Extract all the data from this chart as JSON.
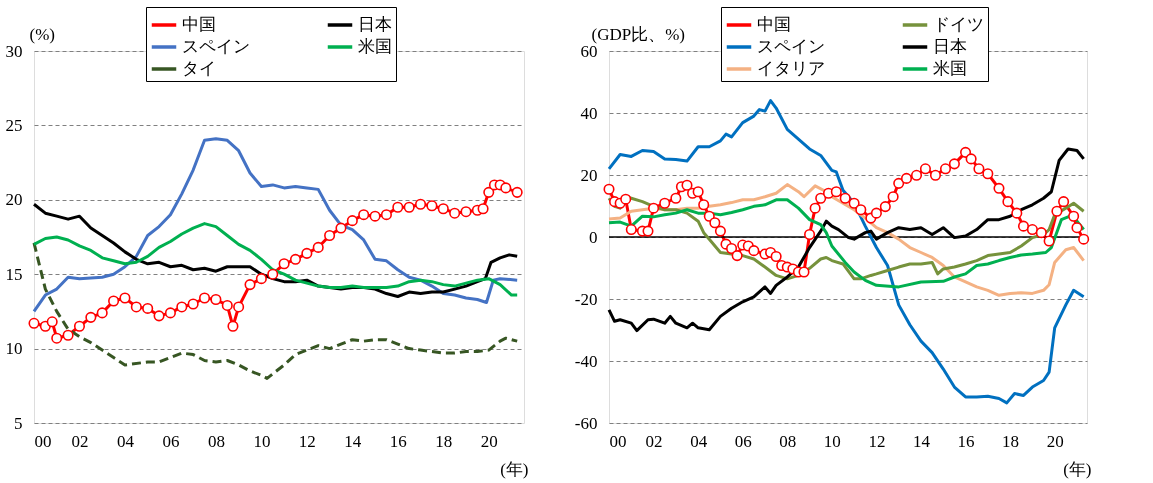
{
  "chart_data": [
    {
      "type": "line",
      "ylabel": "(%)",
      "xlabel": "(年)",
      "xlim": [
        2000,
        2021.55
      ],
      "ylim": [
        5,
        30
      ],
      "xticks": [
        {
          "value": 2000,
          "label": "00"
        },
        {
          "value": 2002,
          "label": "02"
        },
        {
          "value": 2004,
          "label": "04"
        },
        {
          "value": 2006,
          "label": "06"
        },
        {
          "value": 2008,
          "label": "08"
        },
        {
          "value": 2010,
          "label": "10"
        },
        {
          "value": 2012,
          "label": "12"
        },
        {
          "value": 2014,
          "label": "14"
        },
        {
          "value": 2016,
          "label": "16"
        },
        {
          "value": 2018,
          "label": "18"
        },
        {
          "value": 2020,
          "label": "20"
        }
      ],
      "yticks": [
        5,
        10,
        15,
        20,
        25,
        30
      ],
      "grid": "y",
      "legend": "top",
      "series": [
        {
          "name": "中国",
          "color": "#ff0000",
          "marker": "circle",
          "x": [
            2000,
            2000.5,
            2000.8,
            2001,
            2001.5,
            2002,
            2002.5,
            2003,
            2003.5,
            2004,
            2004.5,
            2005,
            2005.5,
            2006,
            2006.5,
            2007,
            2007.5,
            2008,
            2008.5,
            2008.75,
            2009,
            2009.5,
            2010,
            2010.5,
            2011,
            2011.5,
            2012,
            2012.5,
            2013,
            2013.5,
            2014,
            2014.5,
            2015,
            2015.5,
            2016,
            2016.5,
            2017,
            2017.5,
            2018,
            2018.5,
            2019,
            2019.5,
            2019.75,
            2020,
            2020.25,
            2020.5,
            2020.75,
            2021.25
          ],
          "values": [
            11.7,
            11.5,
            11.8,
            10.7,
            10.9,
            11.5,
            12.1,
            12.4,
            13.2,
            13.4,
            12.8,
            12.7,
            12.2,
            12.4,
            12.8,
            13.0,
            13.4,
            13.3,
            12.9,
            11.5,
            12.8,
            14.3,
            14.7,
            15.0,
            15.7,
            16.0,
            16.4,
            16.8,
            17.6,
            18.1,
            18.6,
            19.0,
            18.9,
            19.0,
            19.5,
            19.5,
            19.7,
            19.6,
            19.4,
            19.1,
            19.2,
            19.3,
            19.4,
            20.5,
            21.0,
            21.0,
            20.8,
            20.5
          ]
        },
        {
          "name": "スペイン",
          "color": "#4472c4",
          "x": [
            2000,
            2000.5,
            2001,
            2001.5,
            2002,
            2003,
            2003.5,
            2004,
            2004.5,
            2005,
            2005.5,
            2006,
            2006.5,
            2007,
            2007.5,
            2008,
            2008.5,
            2009,
            2009.5,
            2010,
            2010.5,
            2011,
            2011.5,
            2012,
            2012.5,
            2013,
            2013.5,
            2014,
            2014.5,
            2015,
            2015.5,
            2016,
            2016.5,
            2017,
            2017.5,
            2018,
            2018.5,
            2019,
            2019.5,
            2019.9,
            2020.2,
            2020.5,
            2021.25
          ],
          "values": [
            12.5,
            13.6,
            14.0,
            14.8,
            14.7,
            14.8,
            15.0,
            15.5,
            16.2,
            17.6,
            18.2,
            19.0,
            20.4,
            22.0,
            24.0,
            24.1,
            24.0,
            23.3,
            21.8,
            20.9,
            21.0,
            20.8,
            20.9,
            20.8,
            20.7,
            19.3,
            18.3,
            18.0,
            17.3,
            16.0,
            15.9,
            15.3,
            14.8,
            14.6,
            14.2,
            13.7,
            13.6,
            13.4,
            13.3,
            13.1,
            14.6,
            14.7,
            14.6
          ]
        },
        {
          "name": "タイ",
          "color": "#375623",
          "line_style": "dashed",
          "x": [
            2000,
            2000.5,
            2001,
            2001.5,
            2002,
            2002.5,
            2003,
            2003.5,
            2004,
            2005,
            2005.5,
            2006,
            2006.5,
            2007,
            2007.5,
            2008,
            2008.5,
            2009,
            2009.5,
            2010,
            2010.25,
            2010.5,
            2011,
            2011.5,
            2012,
            2012.5,
            2013,
            2013.5,
            2014,
            2014.5,
            2015,
            2015.5,
            2016,
            2016.5,
            2017,
            2017.5,
            2018,
            2018.5,
            2019,
            2019.5,
            2020,
            2020.5,
            2020.75,
            2021.25
          ],
          "values": [
            17.1,
            14.0,
            12.5,
            11.3,
            10.8,
            10.4,
            9.9,
            9.4,
            8.9,
            9.1,
            9.1,
            9.4,
            9.7,
            9.6,
            9.2,
            9.1,
            9.2,
            8.9,
            8.5,
            8.2,
            8.0,
            8.3,
            8.9,
            9.6,
            9.9,
            10.2,
            10.0,
            10.3,
            10.6,
            10.5,
            10.6,
            10.6,
            10.3,
            10.0,
            9.9,
            9.8,
            9.7,
            9.7,
            9.8,
            9.8,
            9.9,
            10.5,
            10.7,
            10.5
          ]
        },
        {
          "name": "日本",
          "color": "#000000",
          "x": [
            2000,
            2000.5,
            2001,
            2001.5,
            2002,
            2002.5,
            2003,
            2003.5,
            2004,
            2004.5,
            2005,
            2005.5,
            2006,
            2006.5,
            2007,
            2007.5,
            2008,
            2008.5,
            2009,
            2009.5,
            2010,
            2010.5,
            2011,
            2011.5,
            2012,
            2012.5,
            2013,
            2013.5,
            2014,
            2014.5,
            2015,
            2015.5,
            2016,
            2016.5,
            2017,
            2017.5,
            2018,
            2018.5,
            2019,
            2019.5,
            2019.85,
            2020.1,
            2020.5,
            2020.9,
            2021.25
          ],
          "values": [
            19.7,
            19.1,
            18.9,
            18.7,
            18.9,
            18.1,
            17.6,
            17.1,
            16.5,
            16.0,
            15.7,
            15.8,
            15.5,
            15.6,
            15.3,
            15.4,
            15.2,
            15.5,
            15.5,
            15.5,
            15.0,
            14.7,
            14.5,
            14.5,
            14.6,
            14.2,
            14.1,
            14.0,
            14.1,
            14.1,
            14.0,
            13.7,
            13.5,
            13.8,
            13.7,
            13.8,
            13.8,
            14.0,
            14.2,
            14.5,
            14.7,
            15.8,
            16.1,
            16.3,
            16.2
          ]
        },
        {
          "name": "米国",
          "color": "#00b050",
          "x": [
            2000,
            2000.5,
            2001,
            2001.5,
            2002,
            2002.5,
            2003,
            2003.5,
            2004,
            2004.5,
            2005,
            2005.5,
            2006,
            2006.5,
            2007,
            2007.5,
            2008,
            2008.5,
            2009,
            2009.5,
            2010,
            2010.5,
            2011,
            2011.5,
            2012,
            2012.5,
            2013,
            2013.5,
            2014,
            2014.5,
            2015,
            2015.5,
            2016,
            2016.5,
            2017,
            2017.5,
            2018,
            2018.5,
            2019,
            2019.5,
            2020,
            2020.5,
            2021,
            2021.25
          ],
          "values": [
            17.0,
            17.4,
            17.5,
            17.3,
            16.9,
            16.6,
            16.1,
            15.9,
            15.7,
            15.8,
            16.2,
            16.8,
            17.2,
            17.7,
            18.1,
            18.4,
            18.2,
            17.6,
            17.0,
            16.6,
            16.0,
            15.3,
            15.0,
            14.6,
            14.4,
            14.2,
            14.1,
            14.1,
            14.2,
            14.1,
            14.1,
            14.1,
            14.2,
            14.5,
            14.6,
            14.5,
            14.3,
            14.2,
            14.4,
            14.6,
            14.7,
            14.3,
            13.6,
            13.6
          ]
        }
      ]
    },
    {
      "type": "line",
      "ylabel": "(GDP比、%)",
      "xlabel": "(年)",
      "xlim": [
        2000,
        2021.45
      ],
      "ylim": [
        -60,
        60
      ],
      "xticks": [
        {
          "value": 2000,
          "label": "00"
        },
        {
          "value": 2002,
          "label": "02"
        },
        {
          "value": 2004,
          "label": "04"
        },
        {
          "value": 2006,
          "label": "06"
        },
        {
          "value": 2008,
          "label": "08"
        },
        {
          "value": 2010,
          "label": "10"
        },
        {
          "value": 2012,
          "label": "12"
        },
        {
          "value": 2014,
          "label": "14"
        },
        {
          "value": 2016,
          "label": "16"
        },
        {
          "value": 2018,
          "label": "18"
        },
        {
          "value": 2020,
          "label": "20"
        }
      ],
      "yticks": [
        -60,
        -40,
        -20,
        0,
        20,
        40,
        60
      ],
      "grid": "y",
      "legend": "top",
      "ref_lines": [
        {
          "axis": "y",
          "value": 0,
          "color": "#000000"
        }
      ],
      "series": [
        {
          "name": "中国",
          "color": "#ff0000",
          "marker": "circle",
          "x": [
            2000,
            2000.25,
            2000.5,
            2000.75,
            2001,
            2001.5,
            2001.75,
            2002,
            2002.5,
            2003,
            2003.25,
            2003.5,
            2003.75,
            2004,
            2004.25,
            2004.5,
            2004.75,
            2005,
            2005.25,
            2005.5,
            2005.75,
            2006,
            2006.25,
            2006.5,
            2007,
            2007.25,
            2007.5,
            2007.75,
            2008,
            2008.25,
            2008.5,
            2008.75,
            2009,
            2009.25,
            2009.5,
            2009.85,
            2010.2,
            2010.6,
            2011,
            2011.3,
            2011.75,
            2012,
            2012.4,
            2012.75,
            2013,
            2013.35,
            2013.8,
            2014.2,
            2014.65,
            2015.1,
            2015.5,
            2016,
            2016.25,
            2016.6,
            2017,
            2017.5,
            2017.9,
            2018.3,
            2018.6,
            2019,
            2019.4,
            2019.75,
            2020.1,
            2020.4,
            2020.85,
            2021,
            2021.3
          ],
          "values": [
            15.4,
            11.4,
            10.9,
            12.2,
            2.4,
            1.9,
            1.9,
            9.3,
            10.9,
            12.5,
            16.2,
            16.7,
            14.1,
            14.6,
            10.4,
            6.7,
            4.6,
            1.9,
            -2.3,
            -3.7,
            -6.0,
            -2.6,
            -2.9,
            -4.4,
            -5.5,
            -5.0,
            -6.3,
            -9.2,
            -9.7,
            -10.3,
            -11.3,
            -11.3,
            0.8,
            9.3,
            12.5,
            14.1,
            14.6,
            12.5,
            10.9,
            8.8,
            6.1,
            7.7,
            9.8,
            13.0,
            17.3,
            18.9,
            19.9,
            22.0,
            19.9,
            22.0,
            23.6,
            27.3,
            25.2,
            22.0,
            20.4,
            15.7,
            11.4,
            7.7,
            3.5,
            2.4,
            1.4,
            -1.3,
            8.3,
            11.4,
            6.7,
            3.0,
            -0.7
          ]
        },
        {
          "name": "スペイン",
          "color": "#0070c0",
          "x": [
            2000,
            2000.5,
            2001,
            2001.5,
            2002,
            2002.5,
            2003,
            2003.5,
            2004,
            2004.5,
            2005,
            2005.25,
            2005.5,
            2006,
            2006.5,
            2006.75,
            2007,
            2007.25,
            2007.5,
            2008,
            2008.5,
            2009,
            2009.5,
            2010,
            2010.2,
            2010.5,
            2011,
            2011.5,
            2012,
            2012.5,
            2013,
            2013.5,
            2014,
            2014.5,
            2015,
            2015.5,
            2016,
            2016.5,
            2017,
            2017.5,
            2017.85,
            2018.2,
            2018.6,
            2019,
            2019.5,
            2019.75,
            2020,
            2020.5,
            2020.85,
            2021.3
          ],
          "values": [
            22.0,
            26.6,
            26.0,
            27.9,
            27.6,
            25.2,
            25.0,
            24.5,
            29.1,
            29.1,
            31.0,
            33.2,
            32.3,
            36.9,
            39.0,
            41.1,
            40.6,
            44.0,
            41.6,
            34.7,
            31.6,
            28.4,
            26.3,
            21.5,
            21.0,
            15.1,
            10.9,
            3.5,
            -3.4,
            -9.2,
            -21.9,
            -28.3,
            -33.6,
            -37.3,
            -42.6,
            -48.4,
            -51.6,
            -51.6,
            -51.4,
            -52.1,
            -53.5,
            -50.5,
            -51.1,
            -48.4,
            -46.3,
            -43.6,
            -29.3,
            -21.9,
            -17.2,
            -19.3
          ]
        },
        {
          "name": "イタリア",
          "color": "#f4b183",
          "x": [
            2000,
            2000.5,
            2001,
            2001.5,
            2002,
            2002.5,
            2003,
            2003.5,
            2004,
            2004.5,
            2005,
            2005.5,
            2006,
            2006.5,
            2007,
            2007.5,
            2008,
            2008.5,
            2008.75,
            2009.25,
            2009.75,
            2010,
            2010.5,
            2011,
            2011.5,
            2012,
            2012.5,
            2013,
            2013.5,
            2014,
            2014.5,
            2015,
            2015.5,
            2016,
            2016.5,
            2017,
            2017.5,
            2018,
            2018.5,
            2019,
            2019.5,
            2019.75,
            2020,
            2020.5,
            2020.85,
            2021.3
          ],
          "values": [
            5.8,
            6.1,
            8.3,
            8.8,
            9.3,
            8.8,
            8.8,
            9.3,
            9.3,
            9.9,
            10.4,
            11.1,
            12.0,
            12.0,
            13.0,
            14.1,
            16.9,
            14.6,
            13.0,
            16.5,
            14.6,
            13.0,
            10.9,
            8.8,
            6.1,
            3.0,
            1.4,
            -0.7,
            -3.4,
            -5.0,
            -6.6,
            -9.2,
            -12.9,
            -14.5,
            -16.1,
            -17.2,
            -18.8,
            -18.2,
            -18.0,
            -18.2,
            -17.2,
            -15.4,
            -8.2,
            -4.1,
            -3.4,
            -7.6
          ]
        },
        {
          "name": "ドイツ",
          "color": "#76923c",
          "x": [
            2000,
            2000.25,
            2000.5,
            2000.75,
            2001,
            2001.5,
            2002,
            2002.5,
            2003,
            2003.5,
            2004,
            2004.25,
            2004.5,
            2005,
            2005.5,
            2006,
            2006.5,
            2007,
            2007.5,
            2008,
            2008.5,
            2009,
            2009.5,
            2009.75,
            2010,
            2010.5,
            2011,
            2011.3,
            2011.75,
            2012,
            2012.5,
            2013,
            2013.5,
            2014,
            2014.5,
            2014.75,
            2015,
            2015.5,
            2016,
            2016.5,
            2017,
            2017.5,
            2018,
            2018.5,
            2019,
            2019.5,
            2019.75,
            2020,
            2020.5,
            2020.85,
            2021.3
          ],
          "values": [
            12.5,
            9.9,
            9.3,
            13.0,
            12.5,
            11.4,
            9.9,
            8.8,
            8.8,
            7.7,
            5.1,
            1.4,
            -0.7,
            -5.0,
            -5.5,
            -6.0,
            -7.1,
            -9.7,
            -12.4,
            -13.5,
            -12.4,
            -10.1,
            -7.1,
            -6.6,
            -7.6,
            -8.7,
            -13.5,
            -13.5,
            -12.4,
            -11.9,
            -10.8,
            -9.7,
            -8.7,
            -8.7,
            -8.2,
            -11.9,
            -10.3,
            -9.7,
            -8.7,
            -7.6,
            -6.0,
            -5.5,
            -5.0,
            -2.9,
            -0.2,
            0.8,
            2.4,
            7.2,
            9.3,
            10.9,
            8.3
          ]
        },
        {
          "name": "日本",
          "color": "#000000",
          "x": [
            2000,
            2000.25,
            2000.5,
            2001,
            2001.25,
            2001.75,
            2002,
            2002.5,
            2002.75,
            2003,
            2003.5,
            2003.75,
            2004,
            2004.5,
            2005,
            2005.5,
            2006,
            2006.5,
            2007,
            2007.25,
            2007.5,
            2008,
            2008.5,
            2009,
            2009.5,
            2009.75,
            2010,
            2010.3,
            2010.75,
            2011,
            2011.5,
            2011.75,
            2012,
            2012.5,
            2013,
            2013.5,
            2014,
            2014.5,
            2015,
            2015.5,
            2016,
            2016.5,
            2017,
            2017.5,
            2018,
            2018.5,
            2019,
            2019.5,
            2019.85,
            2020.2,
            2020.6,
            2021,
            2021.3
          ],
          "values": [
            -23.5,
            -27.2,
            -26.7,
            -27.8,
            -30.2,
            -26.7,
            -26.5,
            -27.8,
            -25.6,
            -27.8,
            -29.3,
            -27.8,
            -29.3,
            -29.9,
            -25.6,
            -23.0,
            -20.9,
            -19.3,
            -16.1,
            -18.2,
            -15.6,
            -12.9,
            -9.7,
            -3.4,
            1.9,
            5.1,
            3.5,
            2.4,
            -0.2,
            -0.7,
            1.4,
            1.9,
            -0.7,
            1.4,
            3.0,
            2.4,
            3.0,
            0.8,
            3.0,
            -0.2,
            0.3,
            2.4,
            5.6,
            5.6,
            6.7,
            8.8,
            10.4,
            12.5,
            14.6,
            24.7,
            28.4,
            27.9,
            25.2
          ]
        },
        {
          "name": "米国",
          "color": "#00b050",
          "x": [
            2000,
            2000.5,
            2001,
            2001.5,
            2002,
            2002.5,
            2003,
            2003.5,
            2004,
            2004.5,
            2005,
            2005.5,
            2006,
            2006.5,
            2007,
            2007.5,
            2008,
            2008.5,
            2009,
            2009.5,
            2009.75,
            2010,
            2010.6,
            2011,
            2011.5,
            2012,
            2013,
            2014,
            2015,
            2015.5,
            2016,
            2016.5,
            2017,
            2017.5,
            2018,
            2018.5,
            2019,
            2019.6,
            2019.85,
            2020.3,
            2020.85,
            2021,
            2021.3
          ],
          "values": [
            4.6,
            4.8,
            3.5,
            6.7,
            6.5,
            7.2,
            7.7,
            8.8,
            7.7,
            7.7,
            7.2,
            7.9,
            8.8,
            9.9,
            10.4,
            12.0,
            12.0,
            9.3,
            5.6,
            4.0,
            1.4,
            -2.9,
            -8.2,
            -11.3,
            -14.0,
            -15.6,
            -16.1,
            -14.5,
            -14.3,
            -12.9,
            -11.9,
            -9.2,
            -8.7,
            -7.6,
            -6.6,
            -5.8,
            -5.5,
            -5.0,
            -3.4,
            5.6,
            7.2,
            5.1,
            2.4
          ]
        }
      ]
    }
  ]
}
